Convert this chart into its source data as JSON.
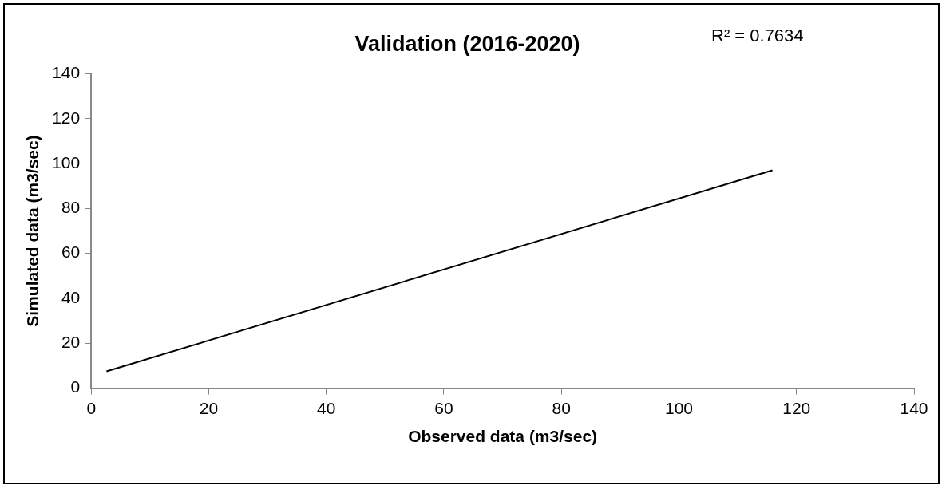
{
  "chart_data": {
    "type": "line",
    "title": "Validation (2016-2020)",
    "xlabel": "Observed data (m3/sec)",
    "ylabel": "Simulated data (m3/sec)",
    "annotations": [
      "R² = 0.7634"
    ],
    "x": [
      2.6,
      115.9
    ],
    "series": [
      {
        "color": "#000000",
        "values": [
          7.5,
          97
        ]
      }
    ],
    "xlim": [
      0,
      140
    ],
    "xticks": [
      0,
      20,
      40,
      60,
      80,
      100,
      120,
      140
    ],
    "ylim": [
      0,
      140
    ],
    "yticks": [
      0,
      20,
      40,
      60,
      80,
      100,
      120,
      140
    ],
    "grid": false,
    "legend": false,
    "marker": "none",
    "line_style": "solid"
  }
}
